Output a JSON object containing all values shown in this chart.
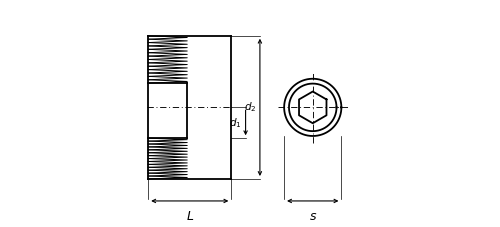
{
  "bg_color": "#ffffff",
  "line_color": "#000000",
  "figsize": [
    5.0,
    2.27
  ],
  "dpi": 100,
  "labels": {
    "d1": "d1",
    "d2": "d2",
    "L": "L",
    "S": "s"
  }
}
